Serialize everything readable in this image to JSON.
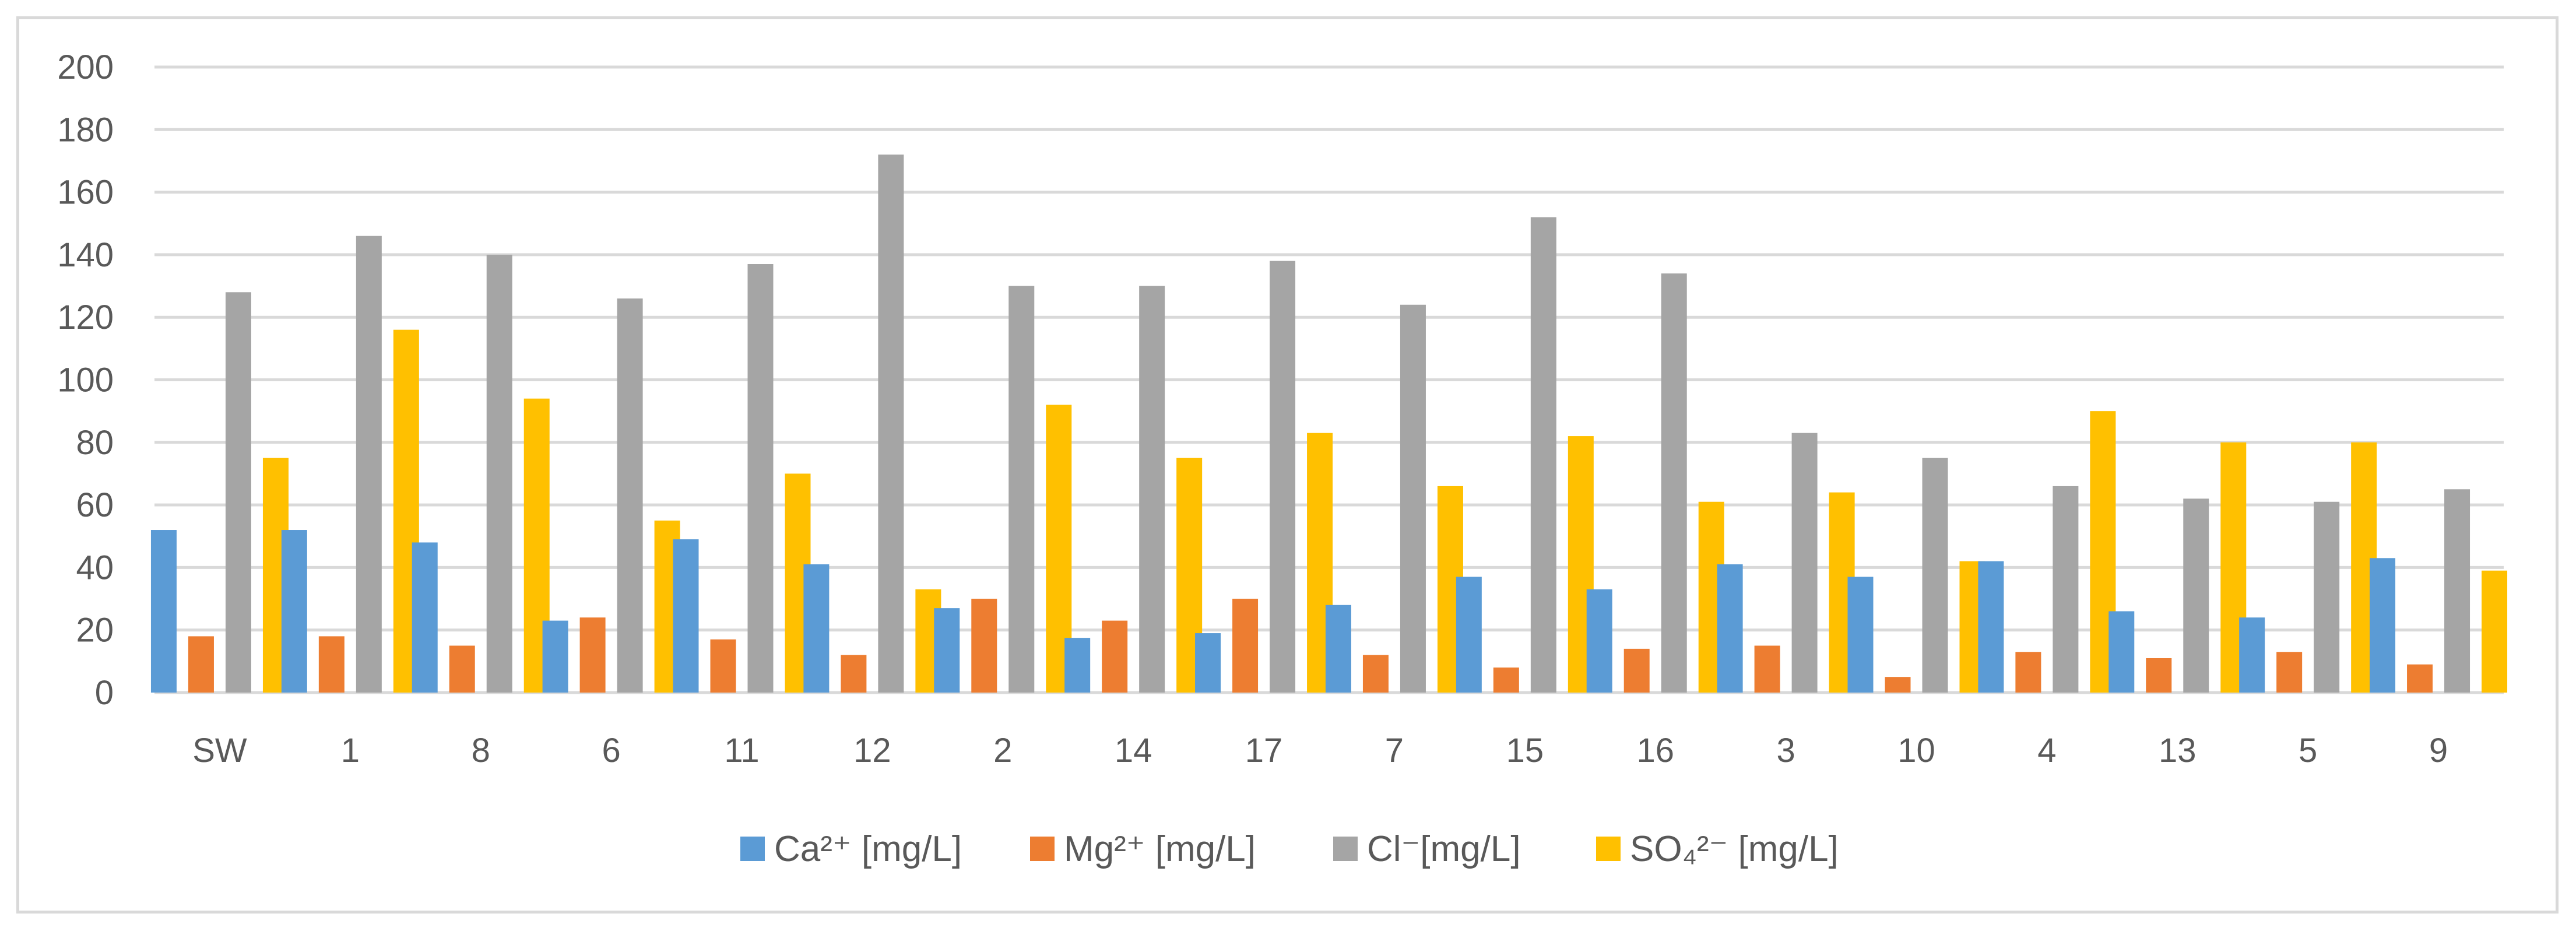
{
  "chart_data": {
    "type": "bar",
    "title": "",
    "xlabel": "",
    "ylabel": "",
    "ylim": [
      0,
      200
    ],
    "yticks": [
      0,
      20,
      40,
      60,
      80,
      100,
      120,
      140,
      160,
      180,
      200
    ],
    "grid": true,
    "legend_position": "bottom",
    "categories": [
      "SW",
      "1",
      "8",
      "6",
      "11",
      "12",
      "2",
      "14",
      "17",
      "7",
      "15",
      "16",
      "3",
      "10",
      "4",
      "13",
      "5",
      "9"
    ],
    "series": [
      {
        "name": "Ca²⁺ [mg/L]",
        "color": "#5b9bd5",
        "values": [
          52,
          52,
          48,
          23,
          49,
          41,
          27,
          17.5,
          19,
          28,
          37,
          33,
          41,
          37,
          42,
          26,
          24,
          43
        ]
      },
      {
        "name": "Mg²⁺ [mg/L]",
        "color": "#ed7d31",
        "values": [
          18,
          18,
          15,
          24,
          17,
          12,
          30,
          23,
          30,
          12,
          8,
          14,
          15,
          5,
          13,
          11,
          13,
          9
        ]
      },
      {
        "name": "Cl⁻[mg/L]",
        "color": "#a5a5a5",
        "values": [
          128,
          146,
          140,
          126,
          137,
          172,
          130,
          130,
          138,
          124,
          152,
          134,
          83,
          75,
          66,
          62,
          61,
          65
        ]
      },
      {
        "name": "SO₄²⁻ [mg/L]",
        "color": "#ffc000",
        "values": [
          75,
          116,
          94,
          55,
          70,
          33,
          92,
          75,
          83,
          66,
          82,
          61,
          64,
          42,
          90,
          80,
          80,
          39
        ]
      }
    ]
  }
}
